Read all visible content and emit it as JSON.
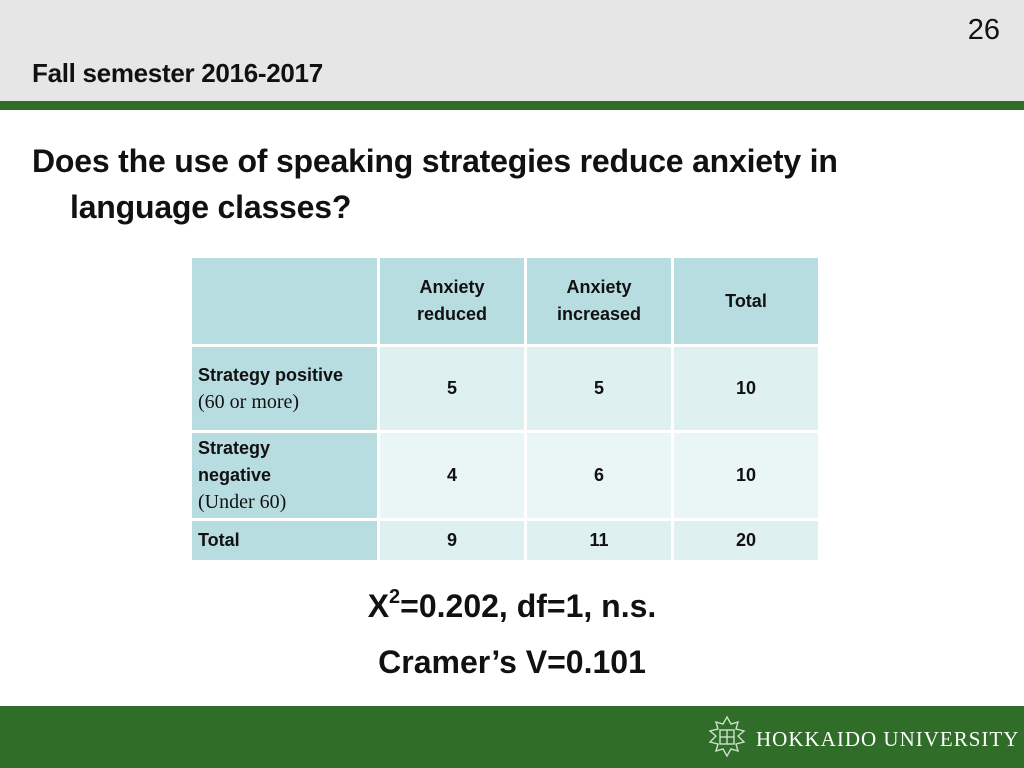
{
  "header": {
    "slide_number": "26",
    "title": "Fall semester 2016-2017"
  },
  "question": {
    "line1": "Does the use of speaking strategies reduce anxiety in",
    "line2": "language classes?"
  },
  "table": {
    "columns": [
      "Anxiety reduced",
      "Anxiety increased",
      "Total"
    ],
    "column_lines": [
      [
        "Anxiety",
        "reduced"
      ],
      [
        "Anxiety",
        "increased"
      ],
      [
        "Total"
      ]
    ],
    "rows": [
      {
        "label_bold": "Strategy positive",
        "label_note": "(60 or more)",
        "values": [
          "5",
          "5",
          "10"
        ]
      },
      {
        "label_bold_lines": [
          "Strategy",
          "negative"
        ],
        "label_note": "(Under 60)",
        "values": [
          "4",
          "6",
          "10"
        ]
      },
      {
        "label_bold": "Total",
        "values": [
          "9",
          "11",
          "20"
        ]
      }
    ]
  },
  "stats": {
    "chi_prefix": "X",
    "chi_sup": "2",
    "chi_rest": "=0.202, df=1, n.s.",
    "cramer": "Cramer’s V=0.101"
  },
  "footer": {
    "university": "HOKKAIDO UNIVERSITY",
    "logo_icon": "university-crest-icon"
  },
  "colors": {
    "accent_green": "#2f6d28",
    "header_gray": "#e6e6e6",
    "table_header": "#b8dde1",
    "table_cell": "#dff0f1"
  }
}
